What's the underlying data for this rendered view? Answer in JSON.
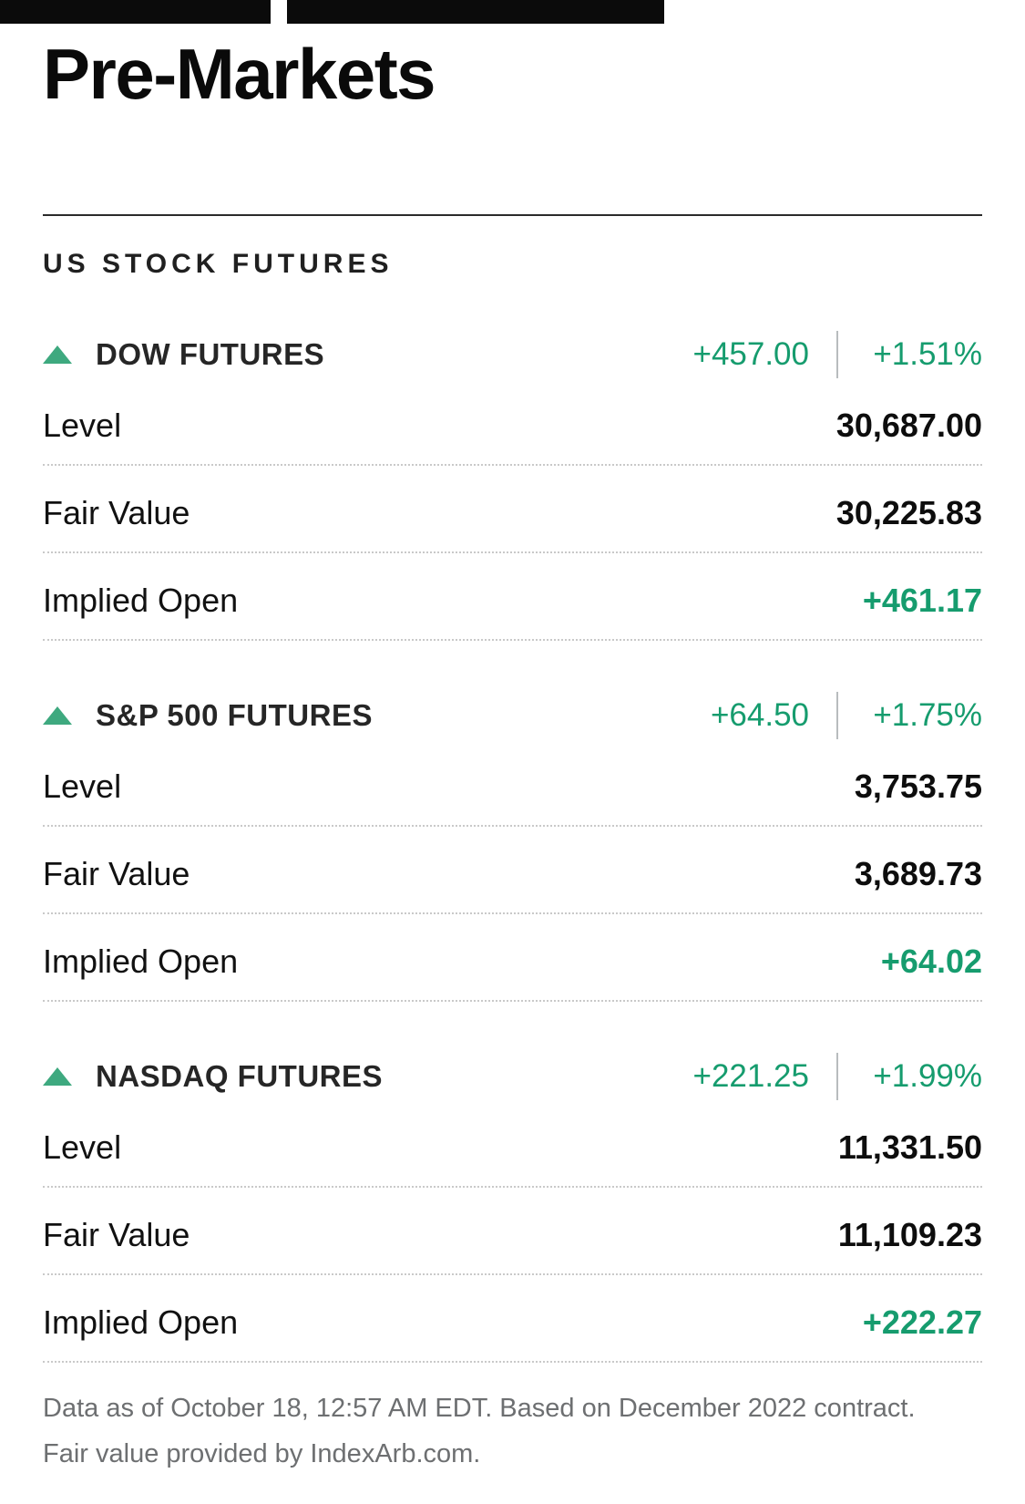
{
  "page": {
    "title": "Pre-Markets",
    "section_title": "US STOCK FUTURES"
  },
  "colors": {
    "accent_green": "#169c6e",
    "triangle_green": "#3ea97f",
    "gray_text": "#6d6f71"
  },
  "row_labels": {
    "level": "Level",
    "fair_value": "Fair Value",
    "implied_open": "Implied Open"
  },
  "futures": [
    {
      "name": "DOW FUTURES",
      "direction": "up",
      "change": "+457.00",
      "percent": "+1.51%",
      "level": "30,687.00",
      "fair_value": "30,225.83",
      "implied_open": "+461.17"
    },
    {
      "name": "S&P 500 FUTURES",
      "direction": "up",
      "change": "+64.50",
      "percent": "+1.75%",
      "level": "3,753.75",
      "fair_value": "3,689.73",
      "implied_open": "+64.02"
    },
    {
      "name": "NASDAQ FUTURES",
      "direction": "up",
      "change": "+221.25",
      "percent": "+1.99%",
      "level": "11,331.50",
      "fair_value": "11,109.23",
      "implied_open": "+222.27"
    }
  ],
  "footer": {
    "line1": "Data as of October 18, 12:57 AM EDT. Based on December 2022 contract.",
    "line2": "Fair value provided by IndexArb.com."
  }
}
